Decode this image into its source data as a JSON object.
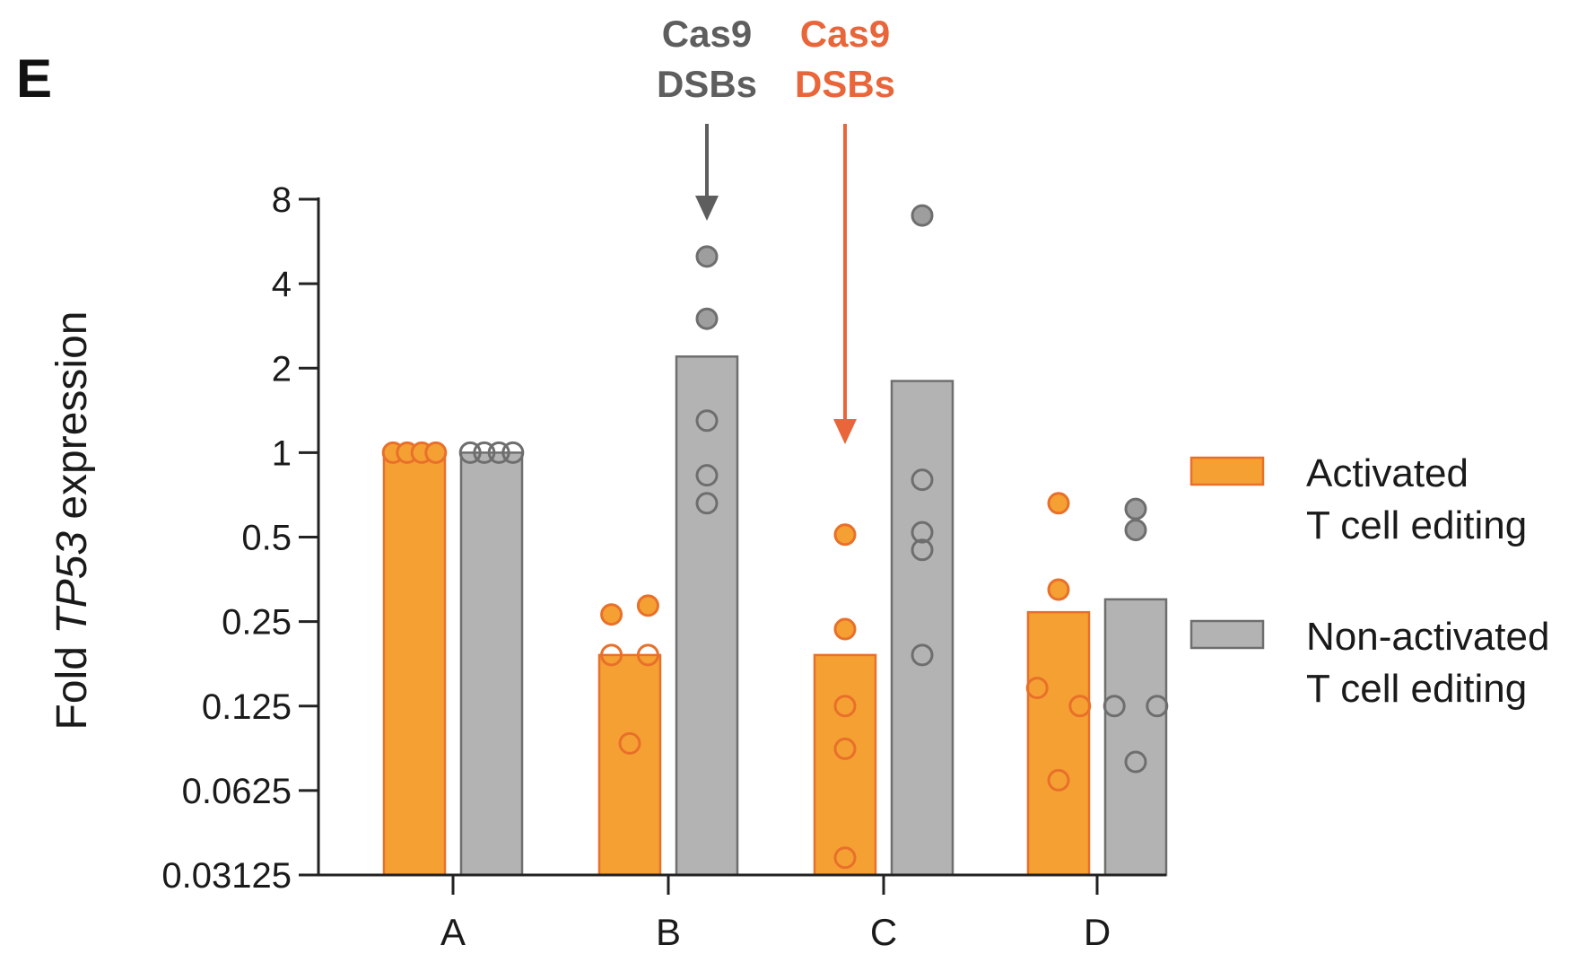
{
  "panel_label": "E",
  "colors": {
    "activated_fill": "#F5A033",
    "activated_edge": "#E8702A",
    "nonactivated_fill": "#B3B3B3",
    "nonactivated_edge": "#6E6E6E",
    "nonactivated_point": "#9E9E9E",
    "arrow_gray": "#5E5E5E",
    "arrow_orange": "#E8663A",
    "axis": "#222222"
  },
  "annotations": [
    {
      "line1": "Cas9",
      "line2": "DSBs",
      "color": "gray",
      "category": "B",
      "series": 1
    },
    {
      "line1": "Cas9",
      "line2": "DSBs",
      "color": "orange",
      "category": "C",
      "series": 0
    }
  ],
  "chart_data": {
    "type": "bar",
    "ylabel_prefix": "Fold ",
    "ylabel_italic": "TP53",
    "ylabel_suffix": " expression",
    "yscale": "log2",
    "ylim": [
      0.03125,
      8
    ],
    "yticks": [
      8,
      4,
      2,
      1,
      0.5,
      0.25,
      0.125,
      0.0625,
      0.03125
    ],
    "ytick_labels": [
      "8",
      "4",
      "2",
      "1",
      "0.5",
      "0.25",
      "0.125",
      "0.0625",
      "0.03125"
    ],
    "categories": [
      "A",
      "B",
      "C",
      "D"
    ],
    "legend_position": "right",
    "series": [
      {
        "legend_line1": "Activated",
        "legend_line2": "T cell editing",
        "values": [
          1.0,
          0.19,
          0.19,
          0.27
        ],
        "points": [
          [
            {
              "v": 1.0,
              "o": -0.35,
              "f": true
            },
            {
              "v": 1.0,
              "o": -0.12,
              "f": true
            },
            {
              "v": 1.0,
              "o": 0.12,
              "f": true
            },
            {
              "v": 1.0,
              "o": 0.35,
              "f": true
            }
          ],
          [
            {
              "v": 0.265,
              "o": -0.3,
              "f": true
            },
            {
              "v": 0.285,
              "o": 0.3,
              "f": true
            },
            {
              "v": 0.19,
              "o": -0.3,
              "f": false
            },
            {
              "v": 0.19,
              "o": 0.3,
              "f": false
            },
            {
              "v": 0.092,
              "o": 0.0,
              "f": false
            }
          ],
          [
            {
              "v": 0.51,
              "o": 0.0,
              "f": true
            },
            {
              "v": 0.235,
              "o": 0.0,
              "f": true
            },
            {
              "v": 0.125,
              "o": 0.0,
              "f": false
            },
            {
              "v": 0.088,
              "o": 0.0,
              "f": false
            },
            {
              "v": 0.036,
              "o": 0.0,
              "f": false
            }
          ],
          [
            {
              "v": 0.66,
              "o": 0.0,
              "f": true
            },
            {
              "v": 0.325,
              "o": 0.0,
              "f": true
            },
            {
              "v": 0.145,
              "o": -0.35,
              "f": false
            },
            {
              "v": 0.125,
              "o": 0.35,
              "f": false
            },
            {
              "v": 0.068,
              "o": 0.0,
              "f": false
            }
          ]
        ]
      },
      {
        "legend_line1": "Non-activated",
        "legend_line2": "T cell editing",
        "values": [
          1.0,
          2.2,
          1.8,
          0.3
        ],
        "points": [
          [
            {
              "v": 1.0,
              "o": -0.35,
              "f": false
            },
            {
              "v": 1.0,
              "o": -0.12,
              "f": false
            },
            {
              "v": 1.0,
              "o": 0.12,
              "f": false
            },
            {
              "v": 1.0,
              "o": 0.35,
              "f": false
            }
          ],
          [
            {
              "v": 5.0,
              "o": 0.0,
              "f": true
            },
            {
              "v": 3.0,
              "o": 0.0,
              "f": true
            },
            {
              "v": 1.3,
              "o": 0.0,
              "f": false
            },
            {
              "v": 0.83,
              "o": 0.0,
              "f": false
            },
            {
              "v": 0.66,
              "o": 0.0,
              "f": false
            }
          ],
          [
            {
              "v": 7.0,
              "o": 0.0,
              "f": true
            },
            {
              "v": 0.8,
              "o": 0.0,
              "f": false
            },
            {
              "v": 0.52,
              "o": 0.0,
              "f": false
            },
            {
              "v": 0.45,
              "o": 0.0,
              "f": false
            },
            {
              "v": 0.19,
              "o": 0.0,
              "f": false
            }
          ],
          [
            {
              "v": 0.63,
              "o": 0.0,
              "f": true
            },
            {
              "v": 0.53,
              "o": 0.0,
              "f": true
            },
            {
              "v": 0.125,
              "o": -0.35,
              "f": false
            },
            {
              "v": 0.125,
              "o": 0.35,
              "f": false
            },
            {
              "v": 0.079,
              "o": 0.0,
              "f": false
            }
          ]
        ]
      }
    ]
  }
}
